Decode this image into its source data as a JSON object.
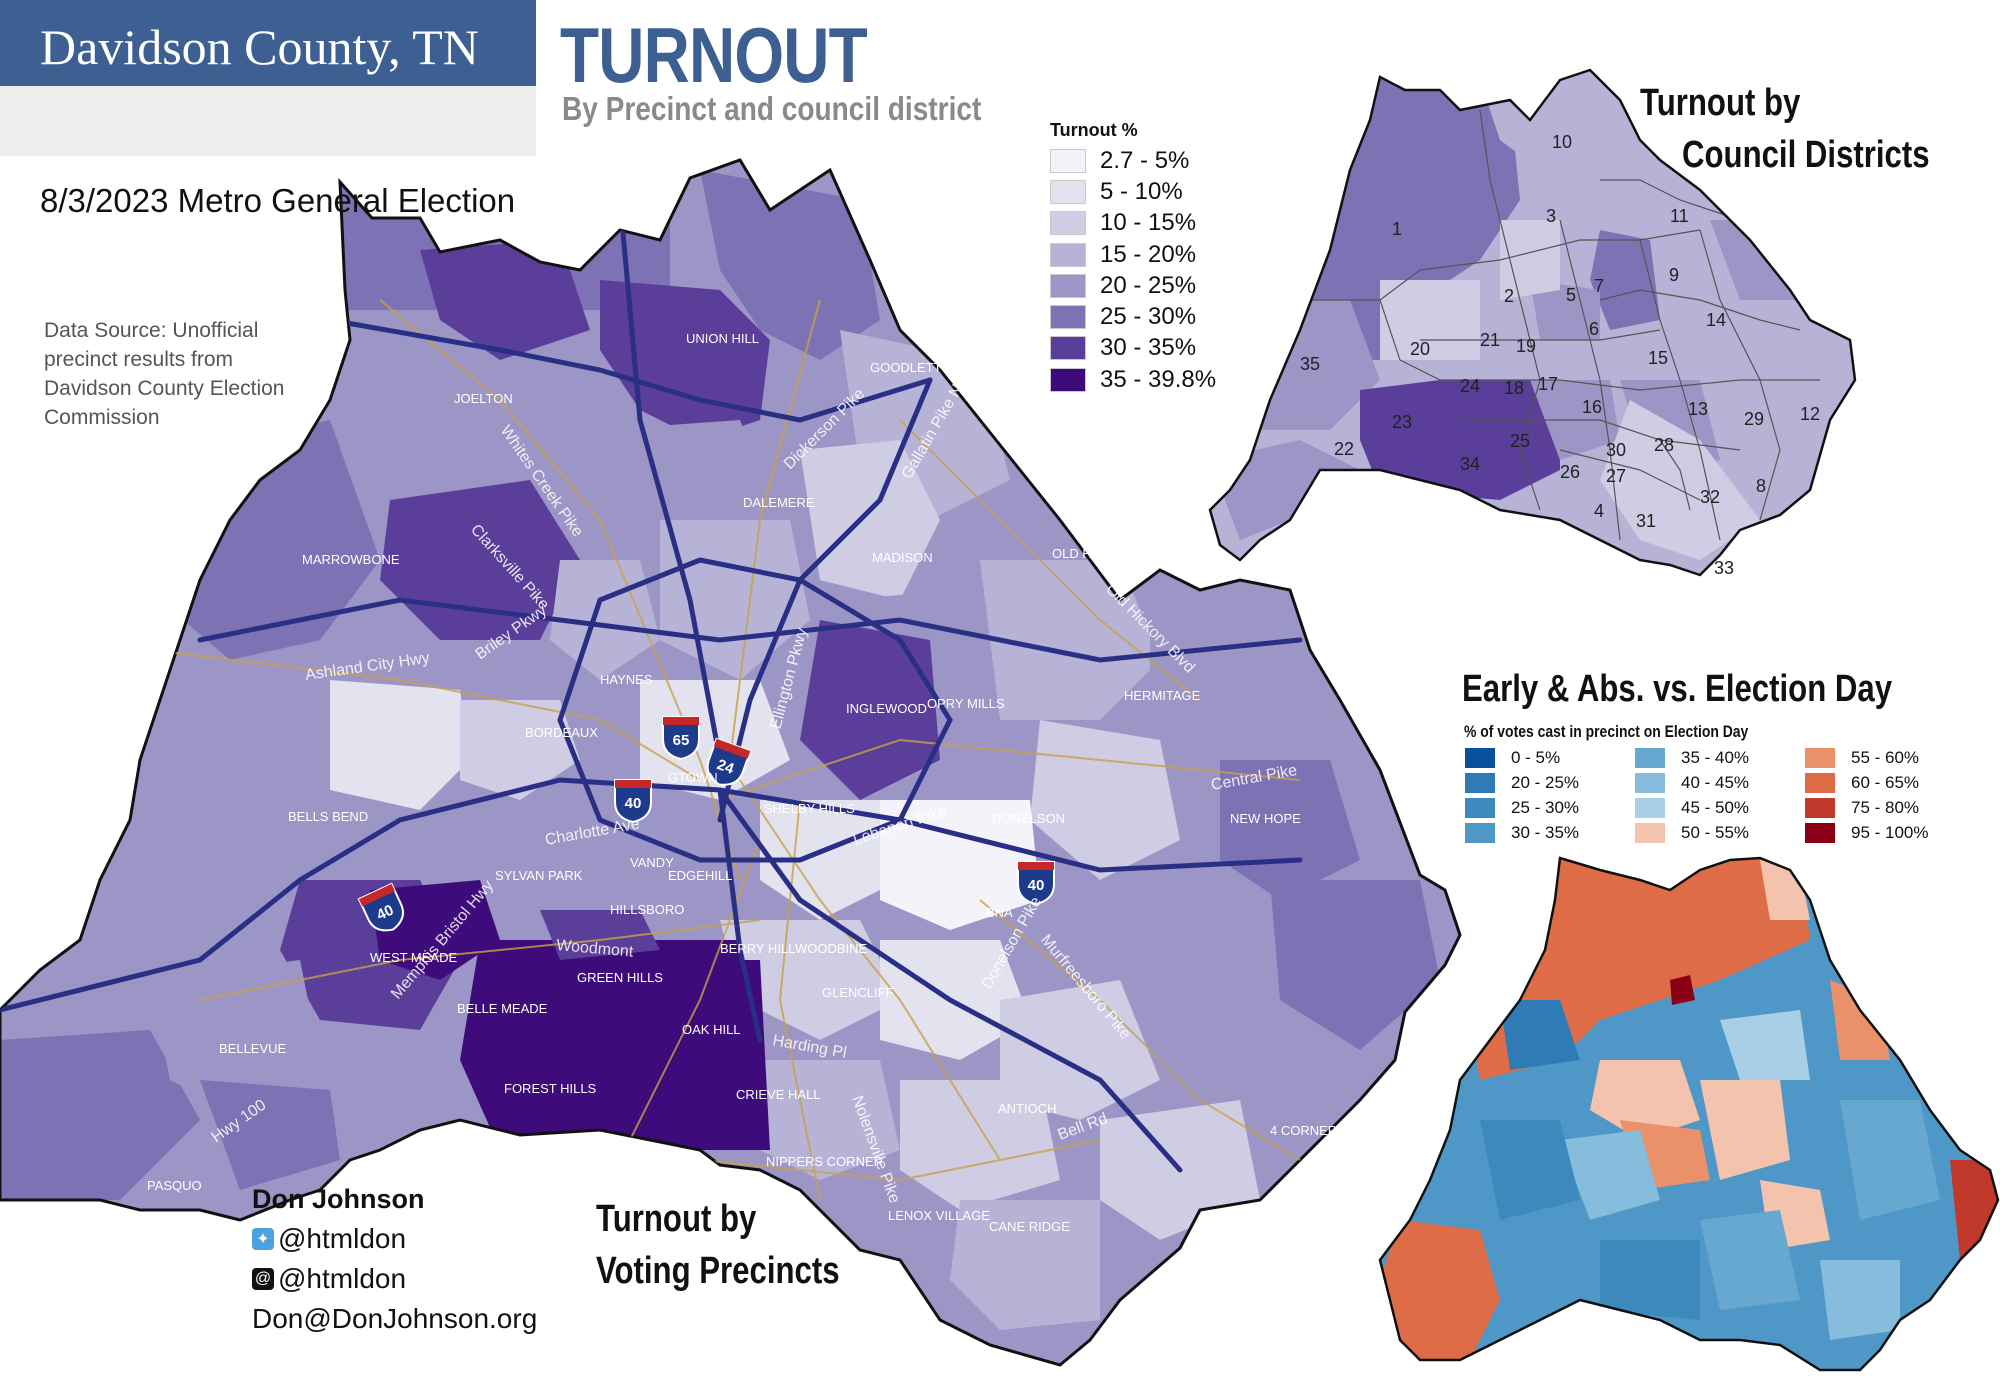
{
  "header": {
    "county": "Davidson County, TN",
    "election": "8/3/2023 Metro General Election",
    "title": "TURNOUT",
    "subtitle": "By Precinct and council district"
  },
  "source_note": "Data Source: Unofficial precinct results from Davidson County Election Commission",
  "turnout_legend": {
    "title": "Turnout %",
    "items": [
      {
        "label": "2.7 - 5%",
        "color": "#f4f3f9"
      },
      {
        "label": "5 - 10%",
        "color": "#e3e2ef"
      },
      {
        "label": "10 - 15%",
        "color": "#cfcde4"
      },
      {
        "label": "15 - 20%",
        "color": "#b6b3d6"
      },
      {
        "label": "20 - 25%",
        "color": "#9b96c6"
      },
      {
        "label": "25 - 30%",
        "color": "#7c72b4"
      },
      {
        "label": "30 - 35%",
        "color": "#5a3e99"
      },
      {
        "label": "35 - 39.8%",
        "color": "#3d0b7a"
      }
    ]
  },
  "council_map": {
    "title_line1": "Turnout by",
    "title_line2": "Council Districts",
    "districts": [
      "1",
      "2",
      "3",
      "4",
      "5",
      "6",
      "7",
      "8",
      "9",
      "10",
      "11",
      "12",
      "13",
      "14",
      "15",
      "16",
      "17",
      "18",
      "19",
      "20",
      "21",
      "22",
      "23",
      "24",
      "25",
      "26",
      "27",
      "28",
      "29",
      "30",
      "31",
      "32",
      "33",
      "34",
      "35"
    ]
  },
  "early_map": {
    "title": "Early & Abs. vs. Election Day",
    "subtitle": "% of votes cast in precinct on Election Day",
    "legend": [
      {
        "label": "0 - 5%",
        "color": "#08519c"
      },
      {
        "label": "20 - 25%",
        "color": "#2f7bb5"
      },
      {
        "label": "25 - 30%",
        "color": "#3d88bd"
      },
      {
        "label": "30 - 35%",
        "color": "#4f97c6"
      },
      {
        "label": "35 - 40%",
        "color": "#66a8d0"
      },
      {
        "label": "40 - 45%",
        "color": "#86bcdc"
      },
      {
        "label": "45 - 50%",
        "color": "#a9cfe6"
      },
      {
        "label": "50 - 55%",
        "color": "#f3c3ae"
      },
      {
        "label": "55 - 60%",
        "color": "#ea916a"
      },
      {
        "label": "60 - 65%",
        "color": "#de6d47"
      },
      {
        "label": "75 - 80%",
        "color": "#c0392b"
      },
      {
        "label": "95 - 100%",
        "color": "#8b0017"
      }
    ]
  },
  "precinct_map": {
    "title_line1": "Turnout by",
    "title_line2": "Voting Precincts",
    "places": [
      "UNION HILL",
      "GOODLETTSVILLE",
      "JOELTON",
      "DALEMERE",
      "MARROWBONE",
      "MADISON",
      "OLD HICKORY",
      "HAYNES",
      "INGLEWOOD",
      "OPRY MILLS",
      "HERMITAGE",
      "BORDEAUX",
      "BELLS BEND",
      "GTOWN",
      "SHELBY HILLS",
      "DONELSON",
      "NEW HOPE",
      "SYLVAN PARK",
      "VANDY",
      "EDGEHILL",
      "HILLSBORO",
      "BNA",
      "WEST MEADE",
      "BERRY HILL",
      "WOODBINE",
      "GREEN HILLS",
      "GLENCLIFF",
      "BELLE MEADE",
      "OAK HILL",
      "BELLEVUE",
      "FOREST HILLS",
      "CRIEVE HALL",
      "ANTIOCH",
      "4 CORNERS",
      "NIPPERS CORNER",
      "PASQUO",
      "LENOX VILLAGE",
      "CANE RIDGE"
    ],
    "roads": [
      "Dickerson Pike",
      "Gallatin Pike N",
      "Clarksville Pike",
      "Briley Pkwy",
      "Ashland City Hwy",
      "Ellington Pkwy",
      "Old Hickory Blvd",
      "Central Pike",
      "Charlotte Ave",
      "Lebanon Pike",
      "Woodmont",
      "Harding Pl",
      "Nolensville Pike",
      "Murfreesboro Pike",
      "Donelson Pike",
      "Bell Rd",
      "Old Hickory Blvd",
      "Hwy 100",
      "Memphis Bristol Hwy",
      "Whites Creek Pike"
    ],
    "interstate_shields": [
      "65",
      "24",
      "40",
      "40",
      "40"
    ]
  },
  "author": {
    "name": "Don Johnson",
    "twitter": "@htmldon",
    "threads": "@htmldon",
    "email": "Don@DonJohnson.org"
  }
}
